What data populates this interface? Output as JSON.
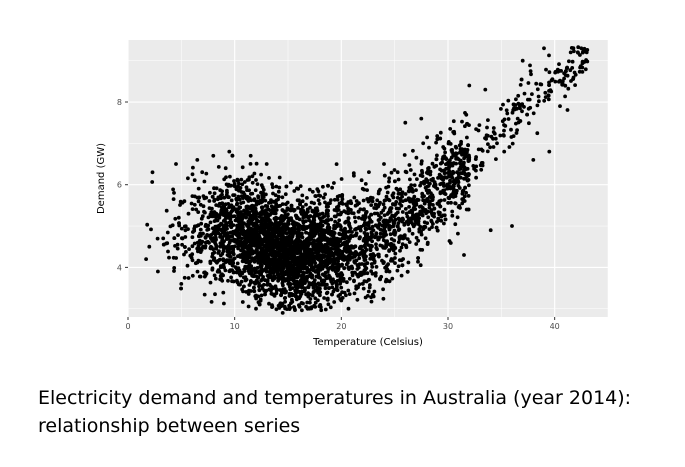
{
  "caption": {
    "line1": "Electricity demand and temperatures in Australia (year 2014):",
    "line2": "relationship between series"
  },
  "chart_data": {
    "type": "scatter",
    "xlabel": "Temperature (Celsius)",
    "ylabel": "Demand (GW)",
    "xlim": [
      0,
      45
    ],
    "ylim": [
      2.8,
      9.5
    ],
    "x_ticks": [
      0,
      10,
      20,
      30,
      40
    ],
    "y_ticks": [
      4,
      6,
      8
    ],
    "grid": true,
    "panel_color": "#ebebeb",
    "grid_color": "#ffffff",
    "point_color": "#000000",
    "point_count_approx": 17520,
    "x_range_observed": [
      1.5,
      43.2
    ],
    "y_range_observed": [
      2.9,
      9.35
    ],
    "trend": [
      {
        "x": 3,
        "y": 4.8
      },
      {
        "x": 10,
        "y": 4.9
      },
      {
        "x": 15,
        "y": 4.3
      },
      {
        "x": 20,
        "y": 4.4
      },
      {
        "x": 25,
        "y": 5.0
      },
      {
        "x": 30,
        "y": 6.1
      },
      {
        "x": 35,
        "y": 7.3
      },
      {
        "x": 40,
        "y": 8.6
      },
      {
        "x": 43,
        "y": 9.1
      }
    ],
    "points": [
      {
        "x": 1.7,
        "y": 4.2
      },
      {
        "x": 2.0,
        "y": 4.5
      },
      {
        "x": 2.3,
        "y": 6.3
      },
      {
        "x": 2.8,
        "y": 3.9
      },
      {
        "x": 3.3,
        "y": 4.7
      },
      {
        "x": 4.5,
        "y": 6.5
      },
      {
        "x": 5.0,
        "y": 3.6
      },
      {
        "x": 6.5,
        "y": 6.6
      },
      {
        "x": 8.0,
        "y": 6.7
      },
      {
        "x": 9.5,
        "y": 6.8
      },
      {
        "x": 11.5,
        "y": 6.7
      },
      {
        "x": 13.0,
        "y": 6.5
      },
      {
        "x": 12.0,
        "y": 3.0
      },
      {
        "x": 14.5,
        "y": 2.9
      },
      {
        "x": 17.0,
        "y": 3.0
      },
      {
        "x": 20.0,
        "y": 3.2
      },
      {
        "x": 22.0,
        "y": 5.9
      },
      {
        "x": 24.0,
        "y": 6.5
      },
      {
        "x": 26.0,
        "y": 7.5
      },
      {
        "x": 27.5,
        "y": 7.6
      },
      {
        "x": 29.0,
        "y": 7.1
      },
      {
        "x": 31.5,
        "y": 4.3
      },
      {
        "x": 32.0,
        "y": 8.4
      },
      {
        "x": 33.5,
        "y": 8.3
      },
      {
        "x": 34.0,
        "y": 4.9
      },
      {
        "x": 35.5,
        "y": 7.8
      },
      {
        "x": 36.0,
        "y": 5.0
      },
      {
        "x": 37.0,
        "y": 9.0
      },
      {
        "x": 38.0,
        "y": 6.6
      },
      {
        "x": 39.0,
        "y": 9.3
      },
      {
        "x": 39.5,
        "y": 6.8
      },
      {
        "x": 40.5,
        "y": 7.9
      },
      {
        "x": 41.5,
        "y": 9.2
      },
      {
        "x": 42.5,
        "y": 9.3
      },
      {
        "x": 43.0,
        "y": 9.2
      }
    ]
  }
}
